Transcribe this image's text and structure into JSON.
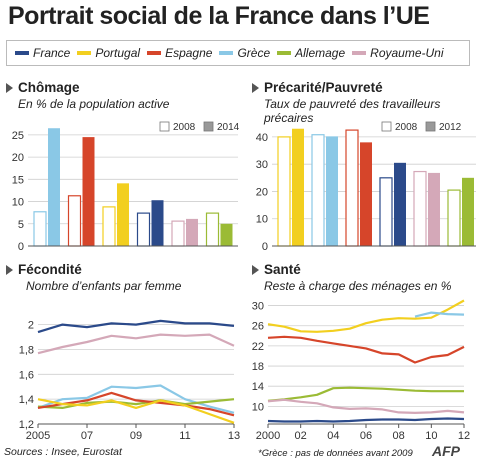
{
  "title": "Portrait social de la France dans l’UE",
  "countries": [
    {
      "name": "France",
      "color": "#2b4a8a"
    },
    {
      "name": "Portugal",
      "color": "#f2cf1f"
    },
    {
      "name": "Espagne",
      "color": "#d6452a"
    },
    {
      "name": "Grèce",
      "color": "#8ac8e6"
    },
    {
      "name": "Allemage",
      "color": "#9bbb35"
    },
    {
      "name": "Royaume-Uni",
      "color": "#d4a8b8"
    }
  ],
  "footer": {
    "sources": "Sources : Insee, Eurostat",
    "footnote": "*Grèce : pas de données avant 2009",
    "logo": "AFP"
  },
  "chart_data": [
    {
      "type": "bar",
      "title": "Chômage",
      "subtitle": "En % de la population active",
      "years": [
        "2008",
        "2014"
      ],
      "categories": [
        "Grèce",
        "Espagne",
        "Portugal",
        "France",
        "Royaume-Uni",
        "Allemage"
      ],
      "series": [
        {
          "name": "2008",
          "values": [
            7.7,
            11.3,
            8.8,
            7.4,
            5.6,
            7.4
          ]
        },
        {
          "name": "2014",
          "values": [
            26.5,
            24.5,
            14.1,
            10.3,
            6.1,
            5.0
          ]
        }
      ],
      "ylim": [
        0,
        27
      ],
      "yticks": [
        0,
        5,
        10,
        15,
        20,
        25
      ]
    },
    {
      "type": "bar",
      "title": "Précarité/Pauvreté",
      "subtitle": "Taux de pauvreté des travailleurs précaires",
      "years": [
        "2008",
        "2012"
      ],
      "categories": [
        "Portugal",
        "Grèce",
        "Espagne",
        "France",
        "Royaume-Uni",
        "Allemage"
      ],
      "series": [
        {
          "name": "2008",
          "values": [
            40.0,
            40.8,
            42.5,
            25.0,
            27.3,
            20.5
          ]
        },
        {
          "name": "2012",
          "values": [
            43.0,
            40.2,
            38.0,
            30.5,
            26.8,
            25.0
          ]
        }
      ],
      "ylim": [
        0,
        44
      ],
      "yticks": [
        0,
        10,
        20,
        30,
        40
      ]
    },
    {
      "type": "line",
      "title": "Fécondité",
      "subtitle": "Nombre d’enfants par femme",
      "x": [
        2005,
        2006,
        2007,
        2008,
        2009,
        2010,
        2011,
        2012,
        2013
      ],
      "xticks": [
        "2005",
        "07",
        "09",
        "11",
        "13"
      ],
      "xtick_values": [
        2005,
        2007,
        2009,
        2011,
        2013
      ],
      "series": [
        {
          "name": "France",
          "values": [
            1.94,
            2.0,
            1.98,
            2.01,
            2.0,
            2.03,
            2.01,
            2.01,
            1.99
          ]
        },
        {
          "name": "Royaume-Uni",
          "values": [
            1.77,
            1.82,
            1.86,
            1.91,
            1.89,
            1.92,
            1.91,
            1.92,
            1.83
          ]
        },
        {
          "name": "Grèce",
          "values": [
            1.33,
            1.4,
            1.41,
            1.5,
            1.49,
            1.51,
            1.4,
            1.34,
            1.29
          ]
        },
        {
          "name": "Allemage",
          "values": [
            1.34,
            1.33,
            1.37,
            1.38,
            1.36,
            1.39,
            1.36,
            1.38,
            1.4
          ]
        },
        {
          "name": "Espagne",
          "values": [
            1.33,
            1.36,
            1.39,
            1.45,
            1.39,
            1.37,
            1.35,
            1.32,
            1.27
          ]
        },
        {
          "name": "Portugal",
          "values": [
            1.4,
            1.36,
            1.35,
            1.39,
            1.33,
            1.39,
            1.35,
            1.28,
            1.21
          ]
        }
      ],
      "ylim": [
        1.2,
        2.15
      ],
      "yticks": [
        1.2,
        1.4,
        1.6,
        1.8,
        2.0
      ],
      "yticklabels": [
        "1,2",
        "1,4",
        "1,6",
        "1,8",
        "2"
      ]
    },
    {
      "type": "line",
      "title": "Santé",
      "subtitle": "Reste à charge des ménages en %",
      "x": [
        2000,
        2001,
        2002,
        2003,
        2004,
        2005,
        2006,
        2007,
        2008,
        2009,
        2010,
        2011,
        2012
      ],
      "xticks": [
        "2000",
        "02",
        "04",
        "06",
        "08",
        "10",
        "12"
      ],
      "xtick_values": [
        2000,
        2002,
        2004,
        2006,
        2008,
        2010,
        2012
      ],
      "series": [
        {
          "name": "Portugal",
          "values": [
            26.3,
            25.8,
            24.9,
            24.8,
            25.0,
            25.4,
            26.5,
            27.2,
            27.5,
            27.4,
            27.6,
            29.2,
            31.0
          ]
        },
        {
          "name": "Grèce",
          "values": [
            null,
            null,
            null,
            null,
            null,
            null,
            null,
            null,
            null,
            27.8,
            28.6,
            28.3,
            28.2
          ]
        },
        {
          "name": "Espagne",
          "values": [
            23.6,
            23.8,
            23.6,
            23.0,
            22.5,
            22.0,
            21.5,
            20.5,
            20.3,
            18.7,
            19.8,
            20.2,
            21.8
          ]
        },
        {
          "name": "Allemage",
          "values": [
            11.1,
            11.4,
            11.8,
            12.3,
            13.6,
            13.7,
            13.6,
            13.5,
            13.3,
            13.1,
            13.0,
            13.0,
            13.0
          ]
        },
        {
          "name": "Royaume-Uni",
          "values": [
            11.0,
            11.3,
            10.9,
            10.6,
            9.8,
            9.5,
            9.6,
            9.4,
            8.8,
            8.7,
            8.8,
            9.1,
            8.8
          ]
        },
        {
          "name": "France",
          "values": [
            7.1,
            7.0,
            7.0,
            7.1,
            7.0,
            7.1,
            7.3,
            7.4,
            7.4,
            7.3,
            7.5,
            7.6,
            7.5
          ]
        }
      ],
      "ylim": [
        6.5,
        31.5
      ],
      "yticks": [
        10,
        14,
        18,
        22,
        26,
        30
      ]
    }
  ]
}
